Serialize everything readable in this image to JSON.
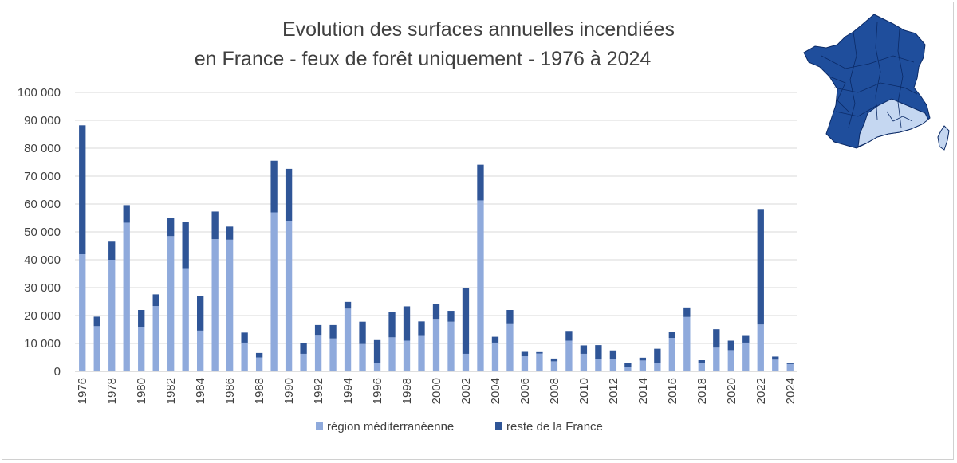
{
  "chart_data": {
    "type": "bar",
    "stacked": true,
    "title_line1": "Evolution des surfaces annuelles incendiées",
    "title_line2": "en France - feux de forêt uniquement - 1976 à 2024",
    "xlabel": "",
    "ylabel": "",
    "ylim": [
      0,
      100000
    ],
    "yticks": [
      "0",
      "10 000",
      "20 000",
      "30 000",
      "40 000",
      "50 000",
      "60 000",
      "70 000",
      "80 000",
      "90 000",
      "100 000"
    ],
    "grid": true,
    "legend_position": "bottom",
    "categories": [
      "1976",
      "1977",
      "1978",
      "1979",
      "1980",
      "1981",
      "1982",
      "1983",
      "1984",
      "1985",
      "1986",
      "1987",
      "1988",
      "1989",
      "1990",
      "1991",
      "1992",
      "1993",
      "1994",
      "1995",
      "1996",
      "1997",
      "1998",
      "1999",
      "2000",
      "2001",
      "2002",
      "2003",
      "2004",
      "2005",
      "2006",
      "2007",
      "2008",
      "2009",
      "2010",
      "2011",
      "2012",
      "2013",
      "2014",
      "2015",
      "2016",
      "2017",
      "2018",
      "2019",
      "2020",
      "2021",
      "2022",
      "2023",
      "2024"
    ],
    "xtick_labels": [
      "1976",
      "1978",
      "1980",
      "1982",
      "1984",
      "1986",
      "1988",
      "1990",
      "1992",
      "1994",
      "1996",
      "1998",
      "2000",
      "2002",
      "2004",
      "2006",
      "2008",
      "2010",
      "2012",
      "2014",
      "2016",
      "2018",
      "2020",
      "2022",
      "2024"
    ],
    "series": [
      {
        "name": "région méditerranéenne",
        "color": "#8faadc",
        "values": [
          42000,
          16200,
          40000,
          53300,
          16000,
          23400,
          48500,
          37000,
          14600,
          47400,
          47200,
          10300,
          5000,
          57000,
          54000,
          6300,
          12800,
          11800,
          22500,
          9800,
          3000,
          12200,
          11000,
          12700,
          18800,
          17800,
          6300,
          61300,
          10300,
          17200,
          5400,
          6400,
          3600,
          11000,
          6300,
          4400,
          4400,
          1700,
          3900,
          3000,
          12000,
          19500,
          3000,
          8500,
          7600,
          10300,
          16800,
          4200,
          2600
        ]
      },
      {
        "name": "reste de la France",
        "color": "#2f5597",
        "values": [
          46200,
          3400,
          6500,
          6300,
          6000,
          4200,
          6600,
          16500,
          12500,
          9900,
          4700,
          3600,
          1600,
          18500,
          18600,
          3700,
          3800,
          4800,
          2400,
          8000,
          8200,
          9000,
          12300,
          5200,
          5200,
          3900,
          23600,
          12800,
          2100,
          4800,
          1600,
          500,
          1000,
          3500,
          3000,
          5000,
          3100,
          1200,
          1000,
          5100,
          2200,
          3400,
          1000,
          6600,
          3400,
          2400,
          41400,
          1100,
          500
        ]
      }
    ]
  },
  "decoration": {
    "map": "france-departments-map",
    "map_highlight_color": "#c5d7f1",
    "map_base_color": "#1f4e9c"
  }
}
